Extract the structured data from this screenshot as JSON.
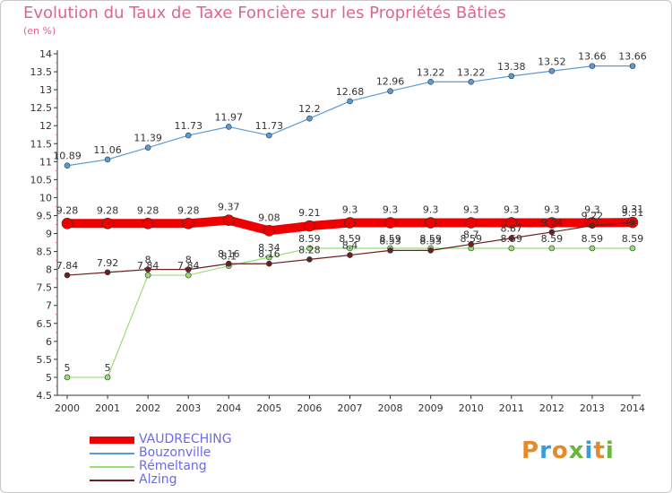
{
  "chart_data": {
    "type": "line",
    "title": "Evolution du Taux de Taxe Foncière sur les Propriétés Bâties",
    "subtitle": "(en %)",
    "x": [
      "2000",
      "2001",
      "2002",
      "2003",
      "2004",
      "2005",
      "2006",
      "2007",
      "2008",
      "2009",
      "2010",
      "2011",
      "2012",
      "2013",
      "2014"
    ],
    "yticks": [
      "4.5",
      "5",
      "5.5",
      "6",
      "6.5",
      "7",
      "7.5",
      "8",
      "8.5",
      "9",
      "9.5",
      "10",
      "10.5",
      "11",
      "11.5",
      "12",
      "12.5",
      "13",
      "13.5",
      "14"
    ],
    "ylim": [
      4.5,
      14
    ],
    "grid": false,
    "legend_position": "bottom-left",
    "series": [
      {
        "name": "VAUDRECHING",
        "color": "#ee0000",
        "values": [
          9.28,
          9.28,
          9.28,
          9.28,
          9.37,
          9.08,
          9.21,
          9.3,
          9.3,
          9.3,
          9.3,
          9.3,
          9.3,
          9.3,
          9.31
        ],
        "labels": [
          "9.28",
          "9.28",
          "9.28",
          "9.28",
          "9.37",
          "9.08",
          "9.21",
          "9.3",
          "9.3",
          "9.3",
          "9.3",
          "9.3",
          "9.3",
          "9.3",
          "9.31"
        ]
      },
      {
        "name": "Bouzonville",
        "color": "#5b9bd5",
        "values": [
          10.89,
          11.06,
          11.39,
          11.73,
          11.97,
          11.73,
          12.2,
          12.68,
          12.96,
          13.22,
          13.22,
          13.38,
          13.52,
          13.66,
          13.66
        ],
        "labels": [
          "10.89",
          "11.06",
          "11.39",
          "11.73",
          "11.97",
          "11.73",
          "12.2",
          "12.68",
          "12.96",
          "13.22",
          "13.22",
          "13.38",
          "13.52",
          "13.66",
          "13.66"
        ]
      },
      {
        "name": "Rémeltang",
        "color": "#99dd77",
        "values": [
          5,
          5,
          7.84,
          7.84,
          8.1,
          8.34,
          8.59,
          8.59,
          8.59,
          8.59,
          8.59,
          8.59,
          8.59,
          8.59,
          8.59
        ],
        "labels": [
          "5",
          "5",
          "7.84",
          "7.84",
          "8.1",
          "8.34",
          "8.59",
          "8.59",
          "8.59",
          "8.59",
          "8.59",
          "8.59",
          "8.59",
          "8.59",
          "8.59"
        ]
      },
      {
        "name": "Alzing",
        "color": "#6b1f1f",
        "values": [
          7.84,
          7.92,
          8,
          8,
          8.16,
          8.16,
          8.28,
          8.4,
          8.53,
          8.53,
          8.7,
          8.87,
          9.04,
          9.22,
          9.31
        ],
        "labels": [
          "7.84",
          "7.92",
          "8",
          "8",
          "8.16",
          "8.16",
          "8.28",
          "8.4",
          "8.53",
          "8.53",
          "8.7",
          "8.87",
          "9.04",
          "9.22",
          "9.31"
        ]
      }
    ]
  },
  "logo": {
    "text": "Proxiti"
  }
}
